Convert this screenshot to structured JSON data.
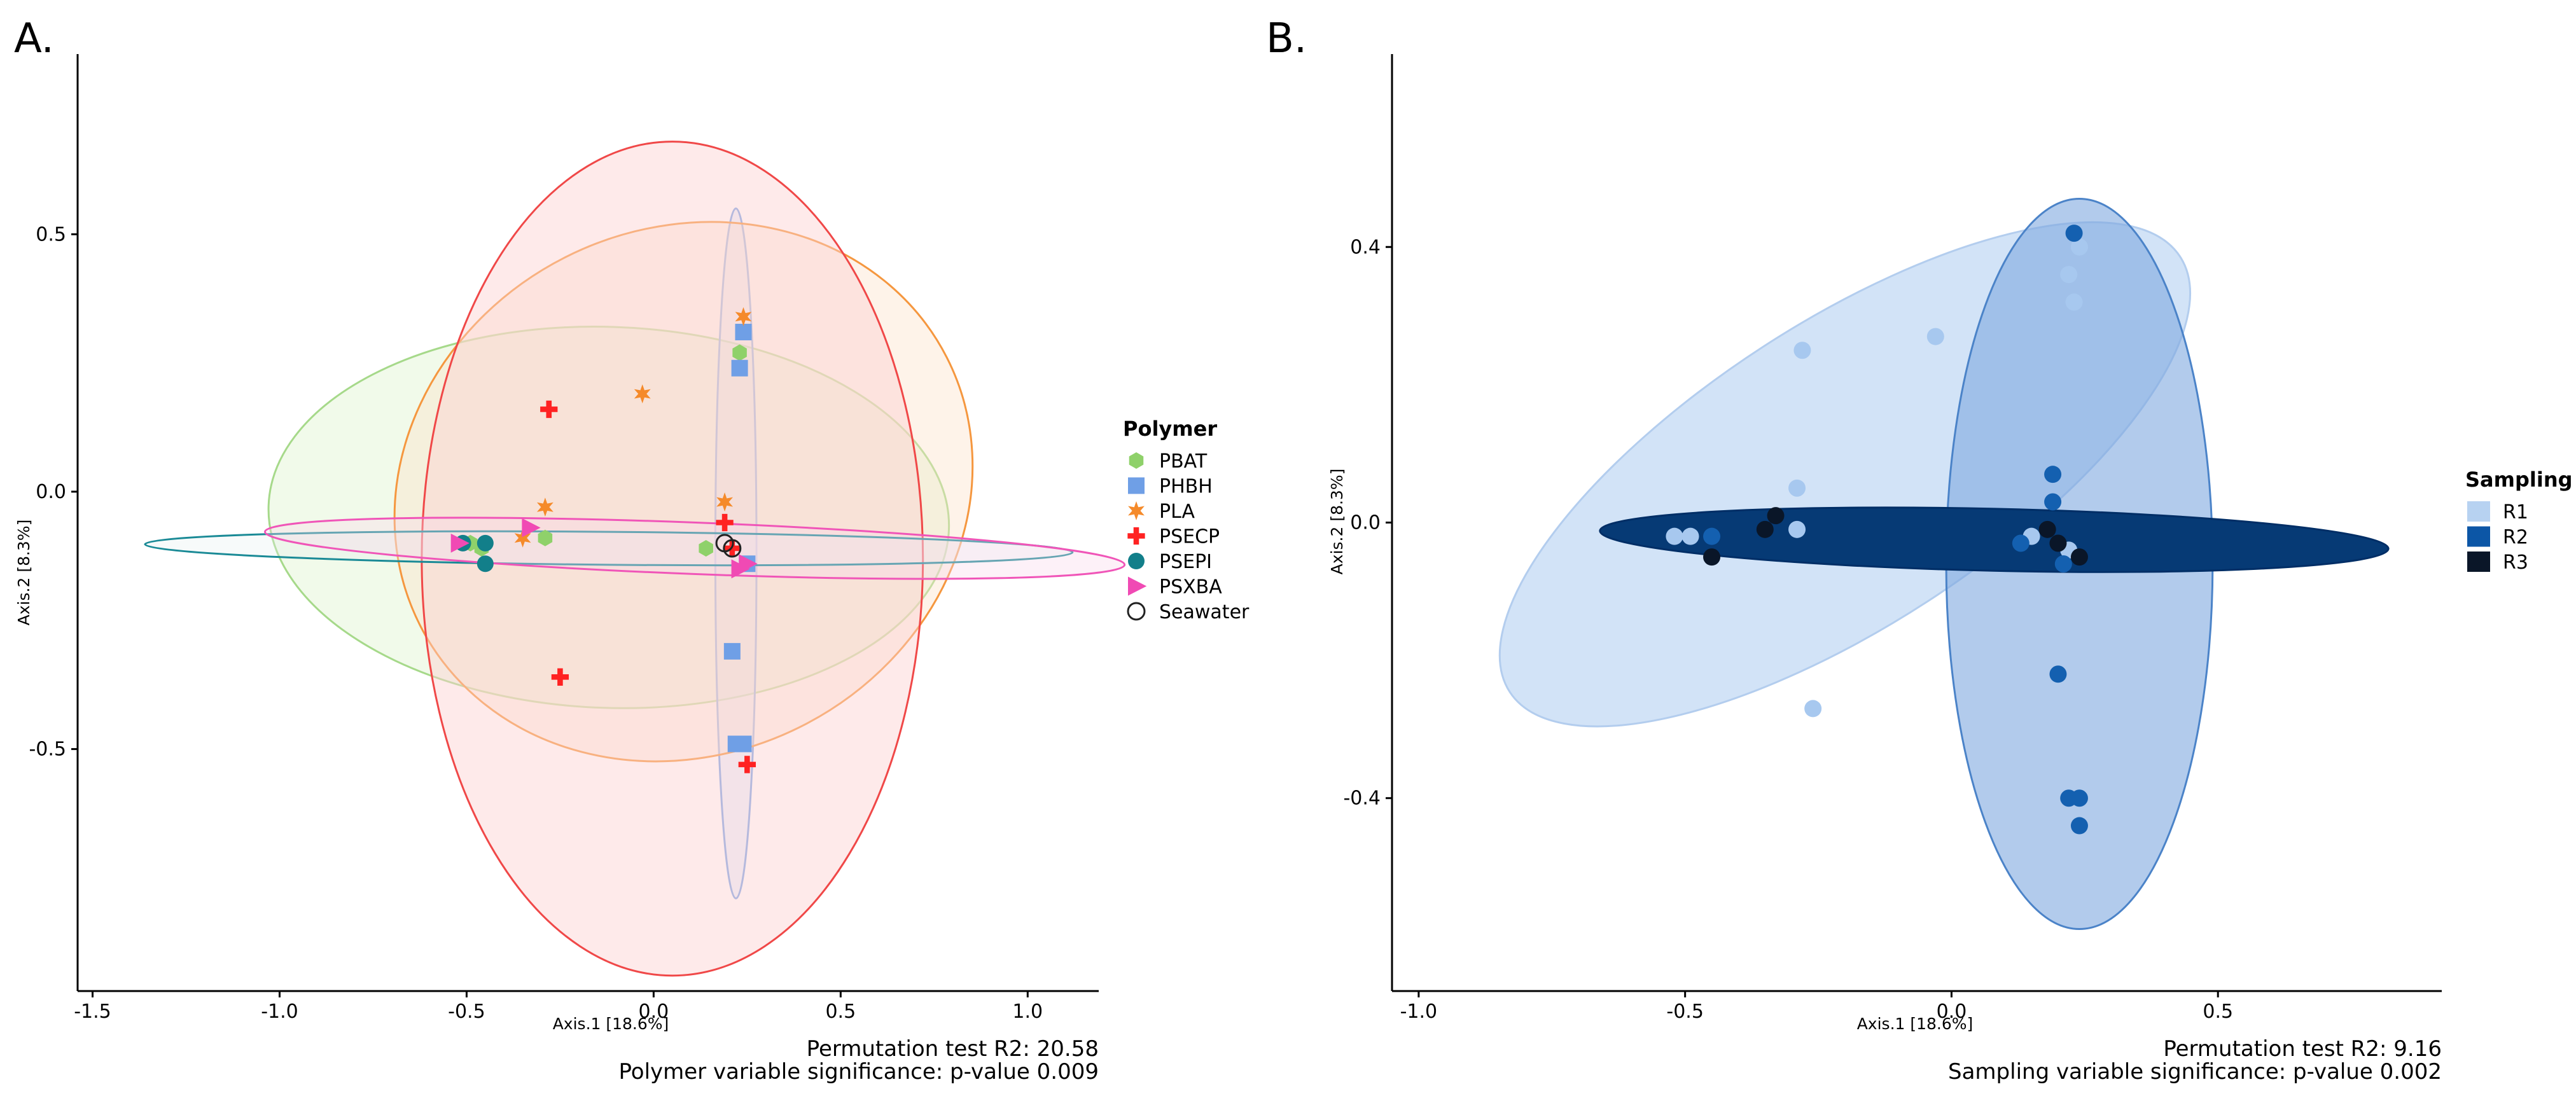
{
  "chart_data": [
    {
      "panel_label": "A.",
      "type": "scatter",
      "xlabel": "Axis.1   [18.6%]",
      "ylabel": "Axis.2   [8.3%]",
      "xlim": [
        -1.54,
        1.19
      ],
      "ylim": [
        -0.97,
        0.85
      ],
      "xticks": [
        -1.5,
        -1.0,
        -0.5,
        0.0,
        0.5,
        1.0
      ],
      "xtick_labels": [
        "-1.5",
        "-1.0",
        "-0.5",
        "0.0",
        "0.5",
        "1.0"
      ],
      "yticks": [
        0.5,
        0.0,
        -0.5
      ],
      "ytick_labels": [
        "0.5",
        "0.0",
        "-0.5"
      ],
      "legend_title": "Polymer",
      "legend_position": "right",
      "stats_line1": "Permutation test R2: 20.58",
      "stats_line2": "Polymer variable significance: p-value 0.009",
      "groups": [
        {
          "name": "PBAT",
          "marker": "hexagon",
          "color": "#8fd16a",
          "fill": "#d6f0c4",
          "stroke": "#a6d98a",
          "opacity": 0.35,
          "ellipse": {
            "cx": -0.12,
            "cy": -0.05,
            "rx": 0.91,
            "ry": 0.37,
            "angle": -2
          }
        },
        {
          "name": "PHBH",
          "marker": "square",
          "color": "#6f9fe6",
          "fill": "#d3e4fa",
          "stroke": "#7aa6e8",
          "opacity": 0.45,
          "ellipse": {
            "cx": 0.22,
            "cy": -0.12,
            "rx": 0.055,
            "ry": 0.67,
            "angle": 0
          }
        },
        {
          "name": "PLA",
          "marker": "star",
          "color": "#f58a2a",
          "fill": "#fde0c8",
          "stroke": "#f5973f",
          "opacity": 0.4,
          "ellipse": {
            "cx": 0.08,
            "cy": 0.0,
            "rx": 0.79,
            "ry": 0.51,
            "angle": 27
          }
        },
        {
          "name": "PSECP",
          "marker": "cross",
          "color": "#ff2222",
          "fill": "#fcd0d0",
          "stroke": "#f04848",
          "opacity": 0.45,
          "ellipse": {
            "cx": 0.05,
            "cy": -0.13,
            "rx": 0.67,
            "ry": 0.81,
            "angle": 0
          }
        },
        {
          "name": "PSEPI",
          "marker": "circle",
          "color": "#127f8a",
          "fill": "#e6eeee",
          "stroke": "#1a8a96",
          "opacity": 0.3,
          "ellipse": {
            "cx": -0.12,
            "cy": -0.11,
            "rx": 1.24,
            "ry": 0.032,
            "angle": -0.5
          }
        },
        {
          "name": "PSXBA",
          "marker": "triangle",
          "color": "#f04ab4",
          "fill": "#fad7ec",
          "stroke": "#f055b8",
          "opacity": 0.35,
          "ellipse": {
            "cx": 0.11,
            "cy": -0.11,
            "rx": 1.15,
            "ry": 0.05,
            "angle": -2.2
          }
        },
        {
          "name": "Seawater",
          "marker": "open-circle",
          "color": "#222222",
          "fill": "none",
          "stroke": "none",
          "opacity": 0,
          "ellipse": null
        }
      ],
      "points": [
        {
          "g": "PBAT",
          "x": 0.23,
          "y": 0.27
        },
        {
          "g": "PBAT",
          "x": -0.29,
          "y": -0.09
        },
        {
          "g": "PBAT",
          "x": 0.14,
          "y": -0.11
        },
        {
          "g": "PBAT",
          "x": -0.46,
          "y": -0.11
        },
        {
          "g": "PBAT",
          "x": -0.49,
          "y": -0.1
        },
        {
          "g": "PHBH",
          "x": 0.24,
          "y": 0.31
        },
        {
          "g": "PHBH",
          "x": 0.23,
          "y": 0.24
        },
        {
          "g": "PHBH",
          "x": 0.21,
          "y": -0.31
        },
        {
          "g": "PHBH",
          "x": 0.22,
          "y": -0.49
        },
        {
          "g": "PHBH",
          "x": 0.24,
          "y": -0.49
        },
        {
          "g": "PHBH",
          "x": 0.25,
          "y": -0.14
        },
        {
          "g": "PLA",
          "x": 0.24,
          "y": 0.34
        },
        {
          "g": "PLA",
          "x": -0.03,
          "y": 0.19
        },
        {
          "g": "PLA",
          "x": -0.29,
          "y": -0.03
        },
        {
          "g": "PLA",
          "x": 0.19,
          "y": -0.02
        },
        {
          "g": "PLA",
          "x": -0.35,
          "y": -0.09
        },
        {
          "g": "PSECP",
          "x": -0.28,
          "y": 0.16
        },
        {
          "g": "PSECP",
          "x": 0.19,
          "y": -0.06
        },
        {
          "g": "PSECP",
          "x": -0.25,
          "y": -0.36
        },
        {
          "g": "PSECP",
          "x": 0.25,
          "y": -0.53
        },
        {
          "g": "PSECP",
          "x": 0.21,
          "y": -0.11
        },
        {
          "g": "PSEPI",
          "x": -0.45,
          "y": -0.1
        },
        {
          "g": "PSEPI",
          "x": -0.45,
          "y": -0.14
        },
        {
          "g": "PSEPI",
          "x": -0.51,
          "y": -0.1
        },
        {
          "g": "PSXBA",
          "x": -0.33,
          "y": -0.07
        },
        {
          "g": "PSXBA",
          "x": -0.52,
          "y": -0.1
        },
        {
          "g": "PSXBA",
          "x": 0.23,
          "y": -0.15
        },
        {
          "g": "PSXBA",
          "x": 0.25,
          "y": -0.14
        },
        {
          "g": "Seawater",
          "x": 0.19,
          "y": -0.1
        },
        {
          "g": "Seawater",
          "x": 0.21,
          "y": -0.11
        }
      ]
    },
    {
      "panel_label": "B.",
      "type": "scatter",
      "xlabel": "Axis.1   [18.6%]",
      "ylabel": "Axis.2   [8.3%]",
      "xlim": [
        -1.05,
        0.92
      ],
      "ylim": [
        -0.68,
        0.68
      ],
      "xticks": [
        -1.0,
        -0.5,
        0.0,
        0.5
      ],
      "xtick_labels": [
        "-1.0",
        "-0.5",
        "0.0",
        "0.5"
      ],
      "yticks": [
        0.4,
        0.0,
        -0.4
      ],
      "ytick_labels": [
        "0.4",
        "0.0",
        "-0.4"
      ],
      "legend_title": "Sampling",
      "legend_position": "right",
      "stats_line1": "Permutation test R2: 9.16",
      "stats_line2": "Sampling variable significance: p-value 0.002",
      "groups": [
        {
          "name": "R1",
          "marker": "square-swatch",
          "color": "#b7d2f1",
          "point_color": "#a7c8ef",
          "fill": "#c5dbf5",
          "stroke": "#b3cdee",
          "opacity": 0.78,
          "ellipse": {
            "cx": -0.2,
            "cy": 0.07,
            "rx": 0.75,
            "ry": 0.22,
            "angle": 33
          }
        },
        {
          "name": "R2",
          "marker": "square-swatch",
          "color": "#0c56a6",
          "point_color": "#1460b0",
          "fill": "#7fa8df",
          "stroke": "#4b83c8",
          "opacity": 0.6,
          "ellipse": {
            "cx": 0.24,
            "cy": -0.06,
            "rx": 0.25,
            "ry": 0.53,
            "angle": 0
          }
        },
        {
          "name": "R3",
          "marker": "square-swatch",
          "color": "#0a1628",
          "point_color": "#0a1628",
          "fill": "#063a75",
          "stroke": "#002e66",
          "opacity": 1,
          "ellipse": {
            "cx": 0.08,
            "cy": -0.025,
            "rx": 0.74,
            "ry": 0.045,
            "angle": -1.3
          }
        }
      ],
      "points": [
        {
          "g": "R1",
          "x": -0.03,
          "y": 0.27
        },
        {
          "g": "R1",
          "x": 0.22,
          "y": 0.36
        },
        {
          "g": "R1",
          "x": 0.23,
          "y": 0.32
        },
        {
          "g": "R1",
          "x": 0.24,
          "y": 0.4
        },
        {
          "g": "R1",
          "x": -0.28,
          "y": 0.25
        },
        {
          "g": "R1",
          "x": -0.29,
          "y": 0.05
        },
        {
          "g": "R1",
          "x": -0.29,
          "y": -0.01
        },
        {
          "g": "R1",
          "x": -0.49,
          "y": -0.02
        },
        {
          "g": "R1",
          "x": -0.52,
          "y": -0.02
        },
        {
          "g": "R1",
          "x": -0.26,
          "y": -0.27
        },
        {
          "g": "R1",
          "x": 0.22,
          "y": -0.04
        },
        {
          "g": "R1",
          "x": 0.15,
          "y": -0.02
        },
        {
          "g": "R2",
          "x": 0.23,
          "y": 0.42
        },
        {
          "g": "R2",
          "x": 0.19,
          "y": 0.07
        },
        {
          "g": "R2",
          "x": 0.19,
          "y": 0.03
        },
        {
          "g": "R2",
          "x": 0.2,
          "y": -0.22
        },
        {
          "g": "R2",
          "x": 0.22,
          "y": -0.4
        },
        {
          "g": "R2",
          "x": 0.24,
          "y": -0.4
        },
        {
          "g": "R2",
          "x": 0.24,
          "y": -0.44
        },
        {
          "g": "R2",
          "x": 0.13,
          "y": -0.03
        },
        {
          "g": "R2",
          "x": 0.21,
          "y": -0.06
        },
        {
          "g": "R2",
          "x": -0.45,
          "y": -0.02
        },
        {
          "g": "R3",
          "x": -0.33,
          "y": 0.01
        },
        {
          "g": "R3",
          "x": -0.35,
          "y": -0.01
        },
        {
          "g": "R3",
          "x": -0.45,
          "y": -0.05
        },
        {
          "g": "R3",
          "x": 0.24,
          "y": -0.05
        },
        {
          "g": "R3",
          "x": 0.2,
          "y": -0.03
        },
        {
          "g": "R3",
          "x": 0.18,
          "y": -0.01
        }
      ]
    }
  ]
}
